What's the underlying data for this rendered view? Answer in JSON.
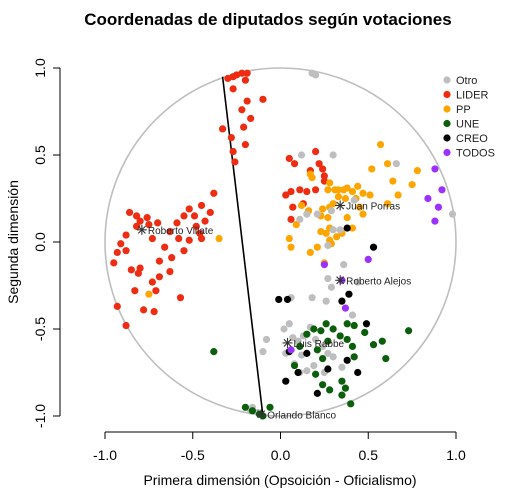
{
  "chart_data": {
    "type": "scatter",
    "title": "Coordenadas de diputados según votaciones",
    "xlabel": "Primera dimensión (Opsoición - Oficialismo)",
    "ylabel": "Segunda dimensión",
    "xlim": [
      -1.0,
      1.0
    ],
    "ylim": [
      -1.0,
      1.0
    ],
    "x_ticks": [
      "-1.0",
      "-0.5",
      "0.0",
      "0.5",
      "1.0"
    ],
    "y_ticks": [
      "-1.0",
      "-0.5",
      "0.0",
      "0.5",
      "1.0"
    ],
    "grid": false,
    "legend_position": "top-right",
    "colors": {
      "Otro": "#bebebe",
      "LIDER": "#ee2c12",
      "PP": "#ffa500",
      "UNE": "#0b5e0b",
      "CREO": "#000000",
      "TODOS": "#9b30ff",
      "circle": "#bebebe",
      "cutline": "#000000"
    },
    "legend": [
      "Otro",
      "LIDER",
      "PP",
      "UNE",
      "CREO",
      "TODOS"
    ],
    "unit_circle": true,
    "cutting_line": {
      "x": [
        -0.33,
        -0.1
      ],
      "y": [
        0.95,
        -1.0
      ]
    },
    "annotations": [
      {
        "label": "Roberto Villate",
        "x": -0.79,
        "y": 0.07
      },
      {
        "label": "Juan Porras",
        "x": 0.34,
        "y": 0.21
      },
      {
        "label": "Roberto Alejos",
        "x": 0.34,
        "y": -0.22
      },
      {
        "label": "Luis Rabbe",
        "x": 0.04,
        "y": -0.58
      },
      {
        "label": "Orlando Blanco",
        "x": -0.11,
        "y": -0.99
      }
    ],
    "series": [
      {
        "name": "LIDER",
        "points": [
          [
            -0.3,
            0.94
          ],
          [
            -0.27,
            0.95
          ],
          [
            -0.25,
            0.96
          ],
          [
            -0.22,
            0.97
          ],
          [
            -0.19,
            0.97
          ],
          [
            -0.2,
            0.93
          ],
          [
            -0.27,
            0.88
          ],
          [
            -0.19,
            0.81
          ],
          [
            -0.1,
            0.82
          ],
          [
            -0.22,
            0.76
          ],
          [
            -0.17,
            0.71
          ],
          [
            -0.21,
            0.66
          ],
          [
            -0.28,
            0.6
          ],
          [
            -0.27,
            0.52
          ],
          [
            -0.33,
            0.65
          ],
          [
            -0.2,
            0.56
          ],
          [
            -0.26,
            0.46
          ],
          [
            -0.38,
            0.28
          ],
          [
            -0.4,
            0.17
          ],
          [
            -0.45,
            0.21
          ],
          [
            -0.49,
            0.15
          ],
          [
            -0.43,
            0.12
          ],
          [
            -0.48,
            0.09
          ],
          [
            -0.46,
            0.05
          ],
          [
            -0.52,
            0.01
          ],
          [
            -0.58,
            0.02
          ],
          [
            -0.55,
            -0.05
          ],
          [
            -0.62,
            -0.09
          ],
          [
            -0.66,
            -0.03
          ],
          [
            -0.69,
            -0.11
          ],
          [
            -0.63,
            -0.17
          ],
          [
            -0.69,
            -0.2
          ],
          [
            -0.73,
            -0.23
          ],
          [
            -0.71,
            -0.28
          ],
          [
            -0.72,
            -0.4
          ],
          [
            -0.78,
            -0.39
          ],
          [
            -0.8,
            -0.15
          ],
          [
            -0.81,
            -0.18
          ],
          [
            -0.83,
            -0.28
          ],
          [
            -0.85,
            -0.16
          ],
          [
            -0.88,
            -0.05
          ],
          [
            -0.91,
            -0.01
          ],
          [
            -0.93,
            -0.06
          ],
          [
            -0.95,
            -0.12
          ],
          [
            -0.93,
            -0.37
          ],
          [
            -0.88,
            -0.48
          ],
          [
            -0.82,
            0.15
          ],
          [
            -0.86,
            0.17
          ],
          [
            -0.88,
            0.04
          ],
          [
            -0.82,
            0.09
          ],
          [
            -0.8,
            0.12
          ],
          [
            -0.75,
            0.1
          ],
          [
            -0.73,
            0.02
          ],
          [
            -0.7,
            0.11
          ],
          [
            -0.63,
            0.06
          ],
          [
            -0.59,
            0.11
          ],
          [
            -0.55,
            0.15
          ],
          [
            -0.52,
            0.19
          ],
          [
            -0.57,
            -0.32
          ],
          [
            -0.76,
            0.14
          ],
          [
            -0.45,
            0.02
          ],
          [
            0.22,
            0.45
          ],
          [
            0.2,
            0.52
          ],
          [
            0.17,
            0.41
          ],
          [
            0.15,
            0.29
          ],
          [
            0.13,
            0.22
          ],
          [
            0.11,
            0.3
          ],
          [
            0.08,
            0.45
          ],
          [
            0.06,
            0.29
          ],
          [
            0.07,
            0.2
          ],
          [
            0.06,
            0.13
          ],
          [
            0.03,
            0.27
          ],
          [
            0.24,
            0.42
          ],
          [
            0.25,
            0.35
          ],
          [
            0.25,
            0.38
          ],
          [
            0.2,
            0.3
          ],
          [
            0.05,
            0.48
          ]
        ]
      },
      {
        "name": "PP",
        "points": [
          [
            0.18,
            0.37
          ],
          [
            0.17,
            0.39
          ],
          [
            0.28,
            0.34
          ],
          [
            0.31,
            0.3
          ],
          [
            0.33,
            0.3
          ],
          [
            0.36,
            0.3
          ],
          [
            0.38,
            0.31
          ],
          [
            0.41,
            0.29
          ],
          [
            0.44,
            0.32
          ],
          [
            0.47,
            0.28
          ],
          [
            0.33,
            0.26
          ],
          [
            0.37,
            0.25
          ],
          [
            0.43,
            0.25
          ],
          [
            0.3,
            0.22
          ],
          [
            0.28,
            0.2
          ],
          [
            0.24,
            0.19
          ],
          [
            0.23,
            0.15
          ],
          [
            0.27,
            0.14
          ],
          [
            0.28,
            0.08
          ],
          [
            0.23,
            0.06
          ],
          [
            0.26,
            0.05
          ],
          [
            0.28,
            0.01
          ],
          [
            0.29,
            -0.01
          ],
          [
            0.32,
            0.03
          ],
          [
            0.35,
            0.05
          ],
          [
            0.38,
            0.14
          ],
          [
            0.41,
            0.08
          ],
          [
            0.47,
            0.16
          ],
          [
            0.45,
            0.2
          ],
          [
            0.51,
            0.27
          ],
          [
            0.52,
            0.42
          ],
          [
            0.57,
            0.56
          ],
          [
            0.61,
            0.45
          ],
          [
            0.64,
            0.35
          ],
          [
            0.67,
            0.27
          ],
          [
            0.75,
            0.33
          ],
          [
            0.78,
            0.41
          ],
          [
            0.61,
            0.22
          ],
          [
            0.12,
            0.21
          ],
          [
            0.16,
            0.18
          ],
          [
            0.09,
            0.1
          ],
          [
            0.05,
            0.02
          ],
          [
            0.06,
            -0.03
          ],
          [
            0.17,
            -0.06
          ],
          [
            0.21,
            -0.03
          ],
          [
            0.25,
            -0.12
          ],
          [
            -0.35,
            0.02
          ],
          [
            -0.75,
            -0.3
          ],
          [
            0.27,
            0.3
          ]
        ]
      },
      {
        "name": "Otro",
        "points": [
          [
            0.18,
            0.97
          ],
          [
            0.2,
            0.96
          ],
          [
            0.12,
            0.5
          ],
          [
            0.3,
            0.5
          ],
          [
            0.66,
            0.45
          ],
          [
            0.15,
            0.16
          ],
          [
            0.21,
            0.16
          ],
          [
            0.29,
            0.18
          ],
          [
            0.98,
            0.16
          ],
          [
            0.11,
            0.13
          ],
          [
            0.3,
            0.07
          ],
          [
            0.34,
            0.07
          ],
          [
            0.27,
            -0.02
          ],
          [
            0.36,
            -0.13
          ],
          [
            0.27,
            -0.21
          ],
          [
            0.29,
            -0.26
          ],
          [
            0.26,
            -0.34
          ],
          [
            0.18,
            -0.32
          ],
          [
            0.06,
            -0.32
          ],
          [
            0.05,
            -0.47
          ],
          [
            0.02,
            -0.5
          ],
          [
            0.07,
            -0.55
          ],
          [
            0.1,
            -0.57
          ],
          [
            0.13,
            -0.54
          ],
          [
            0.2,
            -0.56
          ],
          [
            0.24,
            -0.6
          ],
          [
            0.27,
            -0.64
          ],
          [
            0.3,
            -0.66
          ],
          [
            0.35,
            -0.72
          ],
          [
            0.12,
            -0.65
          ],
          [
            0.08,
            -0.7
          ],
          [
            0.19,
            -0.71
          ],
          [
            0.15,
            -0.74
          ],
          [
            0.11,
            -0.75
          ],
          [
            0.25,
            -0.75
          ],
          [
            -0.08,
            -0.56
          ],
          [
            -0.1,
            -0.63
          ],
          [
            -0.16,
            -0.95
          ],
          [
            -0.17,
            -0.97
          ],
          [
            -0.13,
            -0.98
          ],
          [
            0.03,
            -0.64
          ],
          [
            0.17,
            -0.49
          ],
          [
            0.41,
            -0.42
          ],
          [
            0.44,
            -0.23
          ],
          [
            0.42,
            0.24
          ]
        ]
      },
      {
        "name": "UNE",
        "points": [
          [
            -0.38,
            -0.63
          ],
          [
            -0.2,
            -0.95
          ],
          [
            -0.16,
            -0.97
          ],
          [
            -0.12,
            -0.99
          ],
          [
            -0.1,
            -1.0
          ],
          [
            -0.06,
            -0.95
          ],
          [
            0.08,
            -0.71
          ],
          [
            0.11,
            -0.6
          ],
          [
            0.15,
            -0.53
          ],
          [
            0.19,
            -0.5
          ],
          [
            0.23,
            -0.51
          ],
          [
            0.26,
            -0.47
          ],
          [
            0.3,
            -0.5
          ],
          [
            0.38,
            -0.47
          ],
          [
            0.42,
            -0.48
          ],
          [
            0.34,
            -0.54
          ],
          [
            0.38,
            -0.56
          ],
          [
            0.41,
            -0.6
          ],
          [
            0.48,
            -0.52
          ],
          [
            0.53,
            -0.59
          ],
          [
            0.58,
            -0.57
          ],
          [
            0.6,
            -0.67
          ],
          [
            0.73,
            -0.51
          ],
          [
            0.42,
            -0.66
          ],
          [
            0.27,
            -0.57
          ],
          [
            0.24,
            -0.67
          ],
          [
            0.2,
            -0.76
          ],
          [
            0.24,
            -0.82
          ],
          [
            0.28,
            -0.85
          ],
          [
            0.35,
            -0.8
          ],
          [
            0.37,
            -0.84
          ],
          [
            0.35,
            -0.88
          ],
          [
            0.4,
            -0.93
          ],
          [
            0.21,
            -0.62
          ]
        ]
      },
      {
        "name": "CREO",
        "points": [
          [
            -0.01,
            -0.33
          ],
          [
            0.04,
            -0.33
          ],
          [
            0.35,
            -0.34
          ],
          [
            0.39,
            -0.3
          ],
          [
            0.49,
            -0.47
          ],
          [
            0.53,
            -0.03
          ],
          [
            0.38,
            0.08
          ],
          [
            0.05,
            -0.63
          ],
          [
            0.15,
            -0.64
          ],
          [
            0.1,
            -0.75
          ],
          [
            0.27,
            -0.73
          ],
          [
            0.03,
            -0.8
          ],
          [
            0.21,
            -0.87
          ],
          [
            0.38,
            -0.68
          ],
          [
            0.44,
            -0.75
          ]
        ]
      },
      {
        "name": "TODOS",
        "points": [
          [
            0.88,
            0.42
          ],
          [
            0.92,
            0.3
          ],
          [
            0.9,
            0.2
          ],
          [
            0.88,
            0.12
          ],
          [
            0.84,
            0.25
          ],
          [
            0.5,
            -0.1
          ],
          [
            0.35,
            -0.22
          ],
          [
            0.25,
            -0.13
          ],
          [
            0.37,
            -0.38
          ],
          [
            0.06,
            -0.62
          ]
        ]
      }
    ]
  }
}
